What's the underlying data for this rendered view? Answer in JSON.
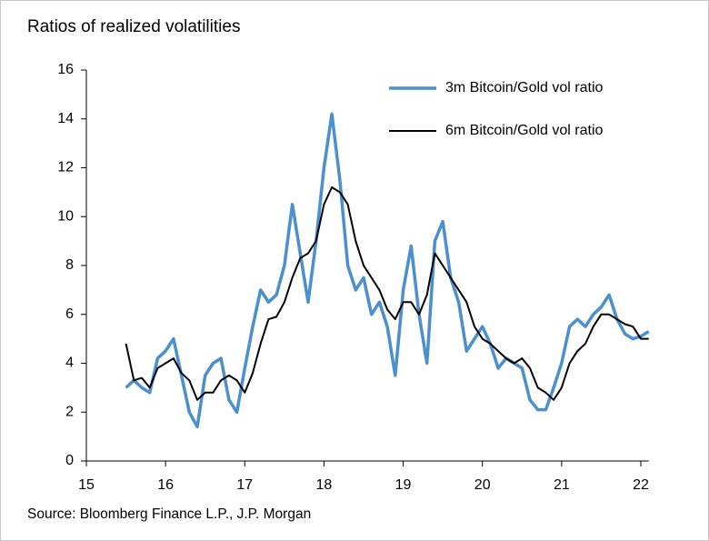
{
  "chart_data": {
    "type": "line",
    "title": "Ratios of realized volatilities",
    "source": "Source: Bloomberg Finance L.P., J.P. Morgan",
    "x": [
      15.5,
      15.6,
      15.7,
      15.8,
      15.9,
      16.0,
      16.1,
      16.2,
      16.3,
      16.4,
      16.5,
      16.6,
      16.7,
      16.8,
      16.9,
      17.0,
      17.1,
      17.2,
      17.3,
      17.4,
      17.5,
      17.6,
      17.7,
      17.8,
      17.9,
      18.0,
      18.1,
      18.2,
      18.3,
      18.4,
      18.5,
      18.6,
      18.7,
      18.8,
      18.9,
      19.0,
      19.1,
      19.2,
      19.3,
      19.4,
      19.5,
      19.6,
      19.7,
      19.8,
      19.9,
      20.0,
      20.1,
      20.2,
      20.3,
      20.4,
      20.5,
      20.6,
      20.7,
      20.8,
      20.9,
      21.0,
      21.1,
      21.2,
      21.3,
      21.4,
      21.5,
      21.6,
      21.7,
      21.8,
      21.9,
      22.0,
      22.1
    ],
    "series": [
      {
        "name": "3m Bitcoin/Gold vol ratio",
        "color": "#4a90d0",
        "width": 3.5,
        "values": [
          3.0,
          3.3,
          3.0,
          2.8,
          4.2,
          4.5,
          5.0,
          3.5,
          2.0,
          1.4,
          3.5,
          4.0,
          4.2,
          2.5,
          2.0,
          3.8,
          5.5,
          7.0,
          6.5,
          6.8,
          8.0,
          10.5,
          8.5,
          6.5,
          9.0,
          12.0,
          14.2,
          11.5,
          8.0,
          7.0,
          7.5,
          6.0,
          6.5,
          5.5,
          3.5,
          7.0,
          8.8,
          6.0,
          4.0,
          9.0,
          9.8,
          7.5,
          6.5,
          4.5,
          5.0,
          5.5,
          4.8,
          3.8,
          4.2,
          4.0,
          3.8,
          2.5,
          2.1,
          2.1,
          3.0,
          4.0,
          5.5,
          5.8,
          5.5,
          6.0,
          6.3,
          6.8,
          5.8,
          5.2,
          5.0,
          5.1,
          5.3
        ]
      },
      {
        "name": "6m Bitcoin/Gold vol ratio",
        "color": "#000000",
        "width": 2,
        "values": [
          4.8,
          3.3,
          3.4,
          3.0,
          3.8,
          4.0,
          4.2,
          3.6,
          3.3,
          2.5,
          2.8,
          2.8,
          3.3,
          3.5,
          3.3,
          2.8,
          3.6,
          4.8,
          5.8,
          5.9,
          6.5,
          7.5,
          8.3,
          8.5,
          9.0,
          10.5,
          11.2,
          11.0,
          10.5,
          9.0,
          8.0,
          7.5,
          7.0,
          6.2,
          5.8,
          6.5,
          6.5,
          6.0,
          6.8,
          8.5,
          8.0,
          7.5,
          7.0,
          6.5,
          5.5,
          5.0,
          4.8,
          4.5,
          4.2,
          4.0,
          4.2,
          3.8,
          3.0,
          2.8,
          2.5,
          3.0,
          4.0,
          4.5,
          4.8,
          5.5,
          6.0,
          6.0,
          5.8,
          5.6,
          5.5,
          5.0,
          5.0
        ]
      }
    ],
    "xlim": [
      15,
      22.1
    ],
    "xticks": [
      15,
      16,
      17,
      18,
      19,
      20,
      21,
      22
    ],
    "ylim": [
      0,
      16
    ],
    "yticks": [
      0,
      2,
      4,
      6,
      8,
      10,
      12,
      14,
      16
    ],
    "grid": false,
    "legend": "upper right"
  }
}
